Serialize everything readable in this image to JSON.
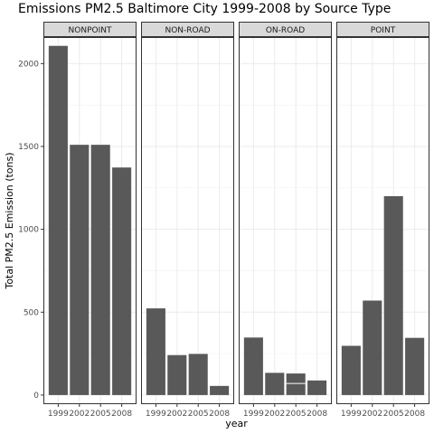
{
  "chart_data": {
    "type": "bar",
    "title": "Emissions PM2.5 Baltimore City 1999-2008 by Source Type",
    "xlabel": "year",
    "ylabel": "Total PM2.5 Emission (tons)",
    "ylim": [
      -55,
      2160
    ],
    "yticks": [
      0,
      500,
      1000,
      1500,
      2000
    ],
    "categories": [
      "1999",
      "2002",
      "2005",
      "2008"
    ],
    "grid": true,
    "colors": {
      "bar": "#595959",
      "strip_fill": "#d9d9d9",
      "panel_border": "#333333",
      "grid": "#ebebeb"
    },
    "facets": [
      {
        "name": "NONPOINT",
        "values": [
          2107,
          1510,
          1510,
          1373
        ]
      },
      {
        "name": "NON-ROAD",
        "values": [
          523,
          241,
          248,
          55
        ]
      },
      {
        "name": "ON-ROAD",
        "values": [
          347,
          134,
          130,
          88
        ]
      },
      {
        "name": "POINT",
        "values": [
          297,
          570,
          1200,
          345
        ]
      }
    ],
    "stack_segments": [
      {
        "facet": 2,
        "category": 2,
        "values": [
          70,
          60
        ]
      }
    ]
  }
}
